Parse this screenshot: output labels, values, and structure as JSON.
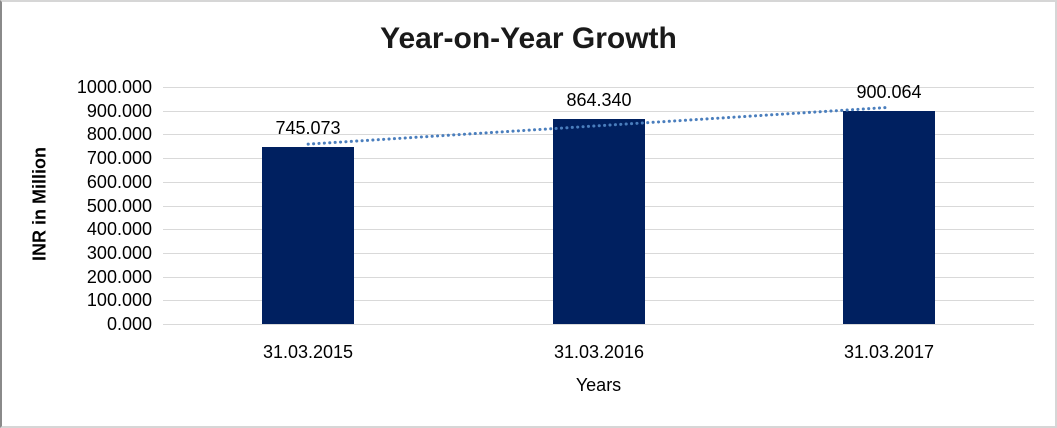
{
  "chart_data": {
    "type": "bar",
    "title": "Year-on-Year Growth",
    "xlabel": "Years",
    "ylabel": "INR in Million",
    "categories": [
      "31.03.2015",
      "31.03.2016",
      "31.03.2017"
    ],
    "values": [
      745.073,
      864.34,
      900.064
    ],
    "data_labels": [
      "745.073",
      "864.340",
      "900.064"
    ],
    "ylim": [
      0,
      1000
    ],
    "y_tick_step": 100,
    "y_tick_labels": [
      "1000.000",
      "900.000",
      "800.000",
      "700.000",
      "600.000",
      "500.000",
      "400.000",
      "300.000",
      "200.000",
      "100.000",
      "0.000"
    ],
    "grid": true,
    "legend": "none",
    "trendline": {
      "type": "linear",
      "style": "dotted"
    },
    "colors": {
      "bar": "#002060",
      "trendline": "#4a7ebd",
      "gridline": "#d9d9d9",
      "title_text": "#1a1a1a",
      "axis_text": "#000000",
      "background": "#ffffff",
      "frame_border": "#d6d6d6"
    }
  }
}
